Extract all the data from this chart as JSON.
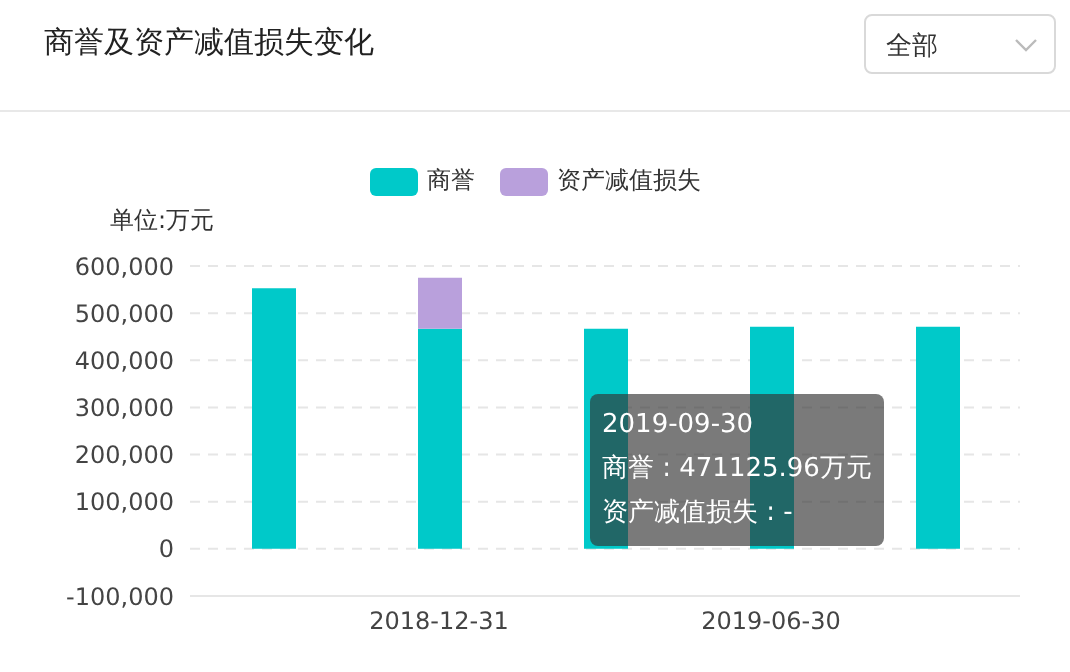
{
  "chart_data": {
    "type": "bar",
    "title": "商誉及资产减值损失变化",
    "ylabel": "单位:万元",
    "categories": [
      null,
      "2018-12-31",
      null,
      "2019-06-30",
      null
    ],
    "series": [
      {
        "name": "商誉",
        "color": "#00c9c9",
        "values": [
          553000,
          467000,
          467000,
          471000,
          471125.96
        ]
      },
      {
        "name": "资产减值损失",
        "color": "#b9a0dc",
        "values": [
          null,
          108000,
          null,
          null,
          null
        ]
      }
    ],
    "stacked": true,
    "ylim": [
      -100000,
      600000
    ],
    "yticks": [
      {
        "value": -100000,
        "label": "-100,000"
      },
      {
        "value": 0,
        "label": "0"
      },
      {
        "value": 100000,
        "label": "100,000"
      },
      {
        "value": 200000,
        "label": "200,000"
      },
      {
        "value": 300000,
        "label": "300,000"
      },
      {
        "value": 400000,
        "label": "400,000"
      },
      {
        "value": 500000,
        "label": "500,000"
      },
      {
        "value": 600000,
        "label": "600,000"
      }
    ],
    "grid": "y",
    "legend": "top",
    "annotations": [
      "全部",
      "2019-09-30",
      "商誉 : 471125.96万元",
      "资产减值损失 : -"
    ]
  }
}
